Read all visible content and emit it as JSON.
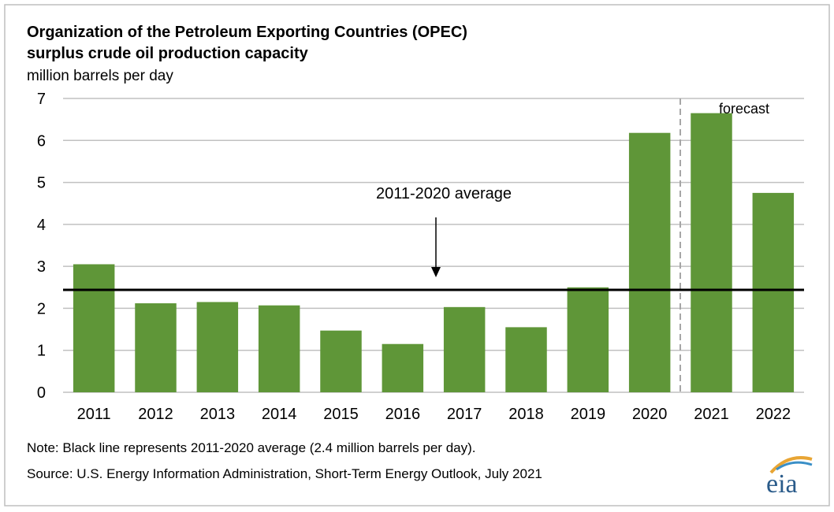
{
  "chart_data": {
    "type": "bar",
    "title": "Organization of the Petroleum Exporting Countries (OPEC)",
    "subtitle": "surplus crude oil production capacity",
    "y_label": "million barrels per day",
    "categories": [
      "2011",
      "2012",
      "2013",
      "2014",
      "2015",
      "2016",
      "2017",
      "2018",
      "2019",
      "2020",
      "2021",
      "2022"
    ],
    "values": [
      3.05,
      2.12,
      2.15,
      2.07,
      1.47,
      1.15,
      2.03,
      1.55,
      2.5,
      6.18,
      6.65,
      4.75
    ],
    "color": "#5f9638",
    "ylim": [
      0,
      7
    ],
    "yticks": [
      0,
      1,
      2,
      3,
      4,
      5,
      6,
      7
    ],
    "grid": true,
    "average": 2.44,
    "average_label": "2011-2020 average",
    "forecast_label": "forecast",
    "note": "Note: Black line represents 2011-2020 average (2.4 million barrels per day).",
    "source": "Source: U.S. Energy Information Administration, Short-Term Energy Outlook, July 2021",
    "logo": "eia"
  }
}
